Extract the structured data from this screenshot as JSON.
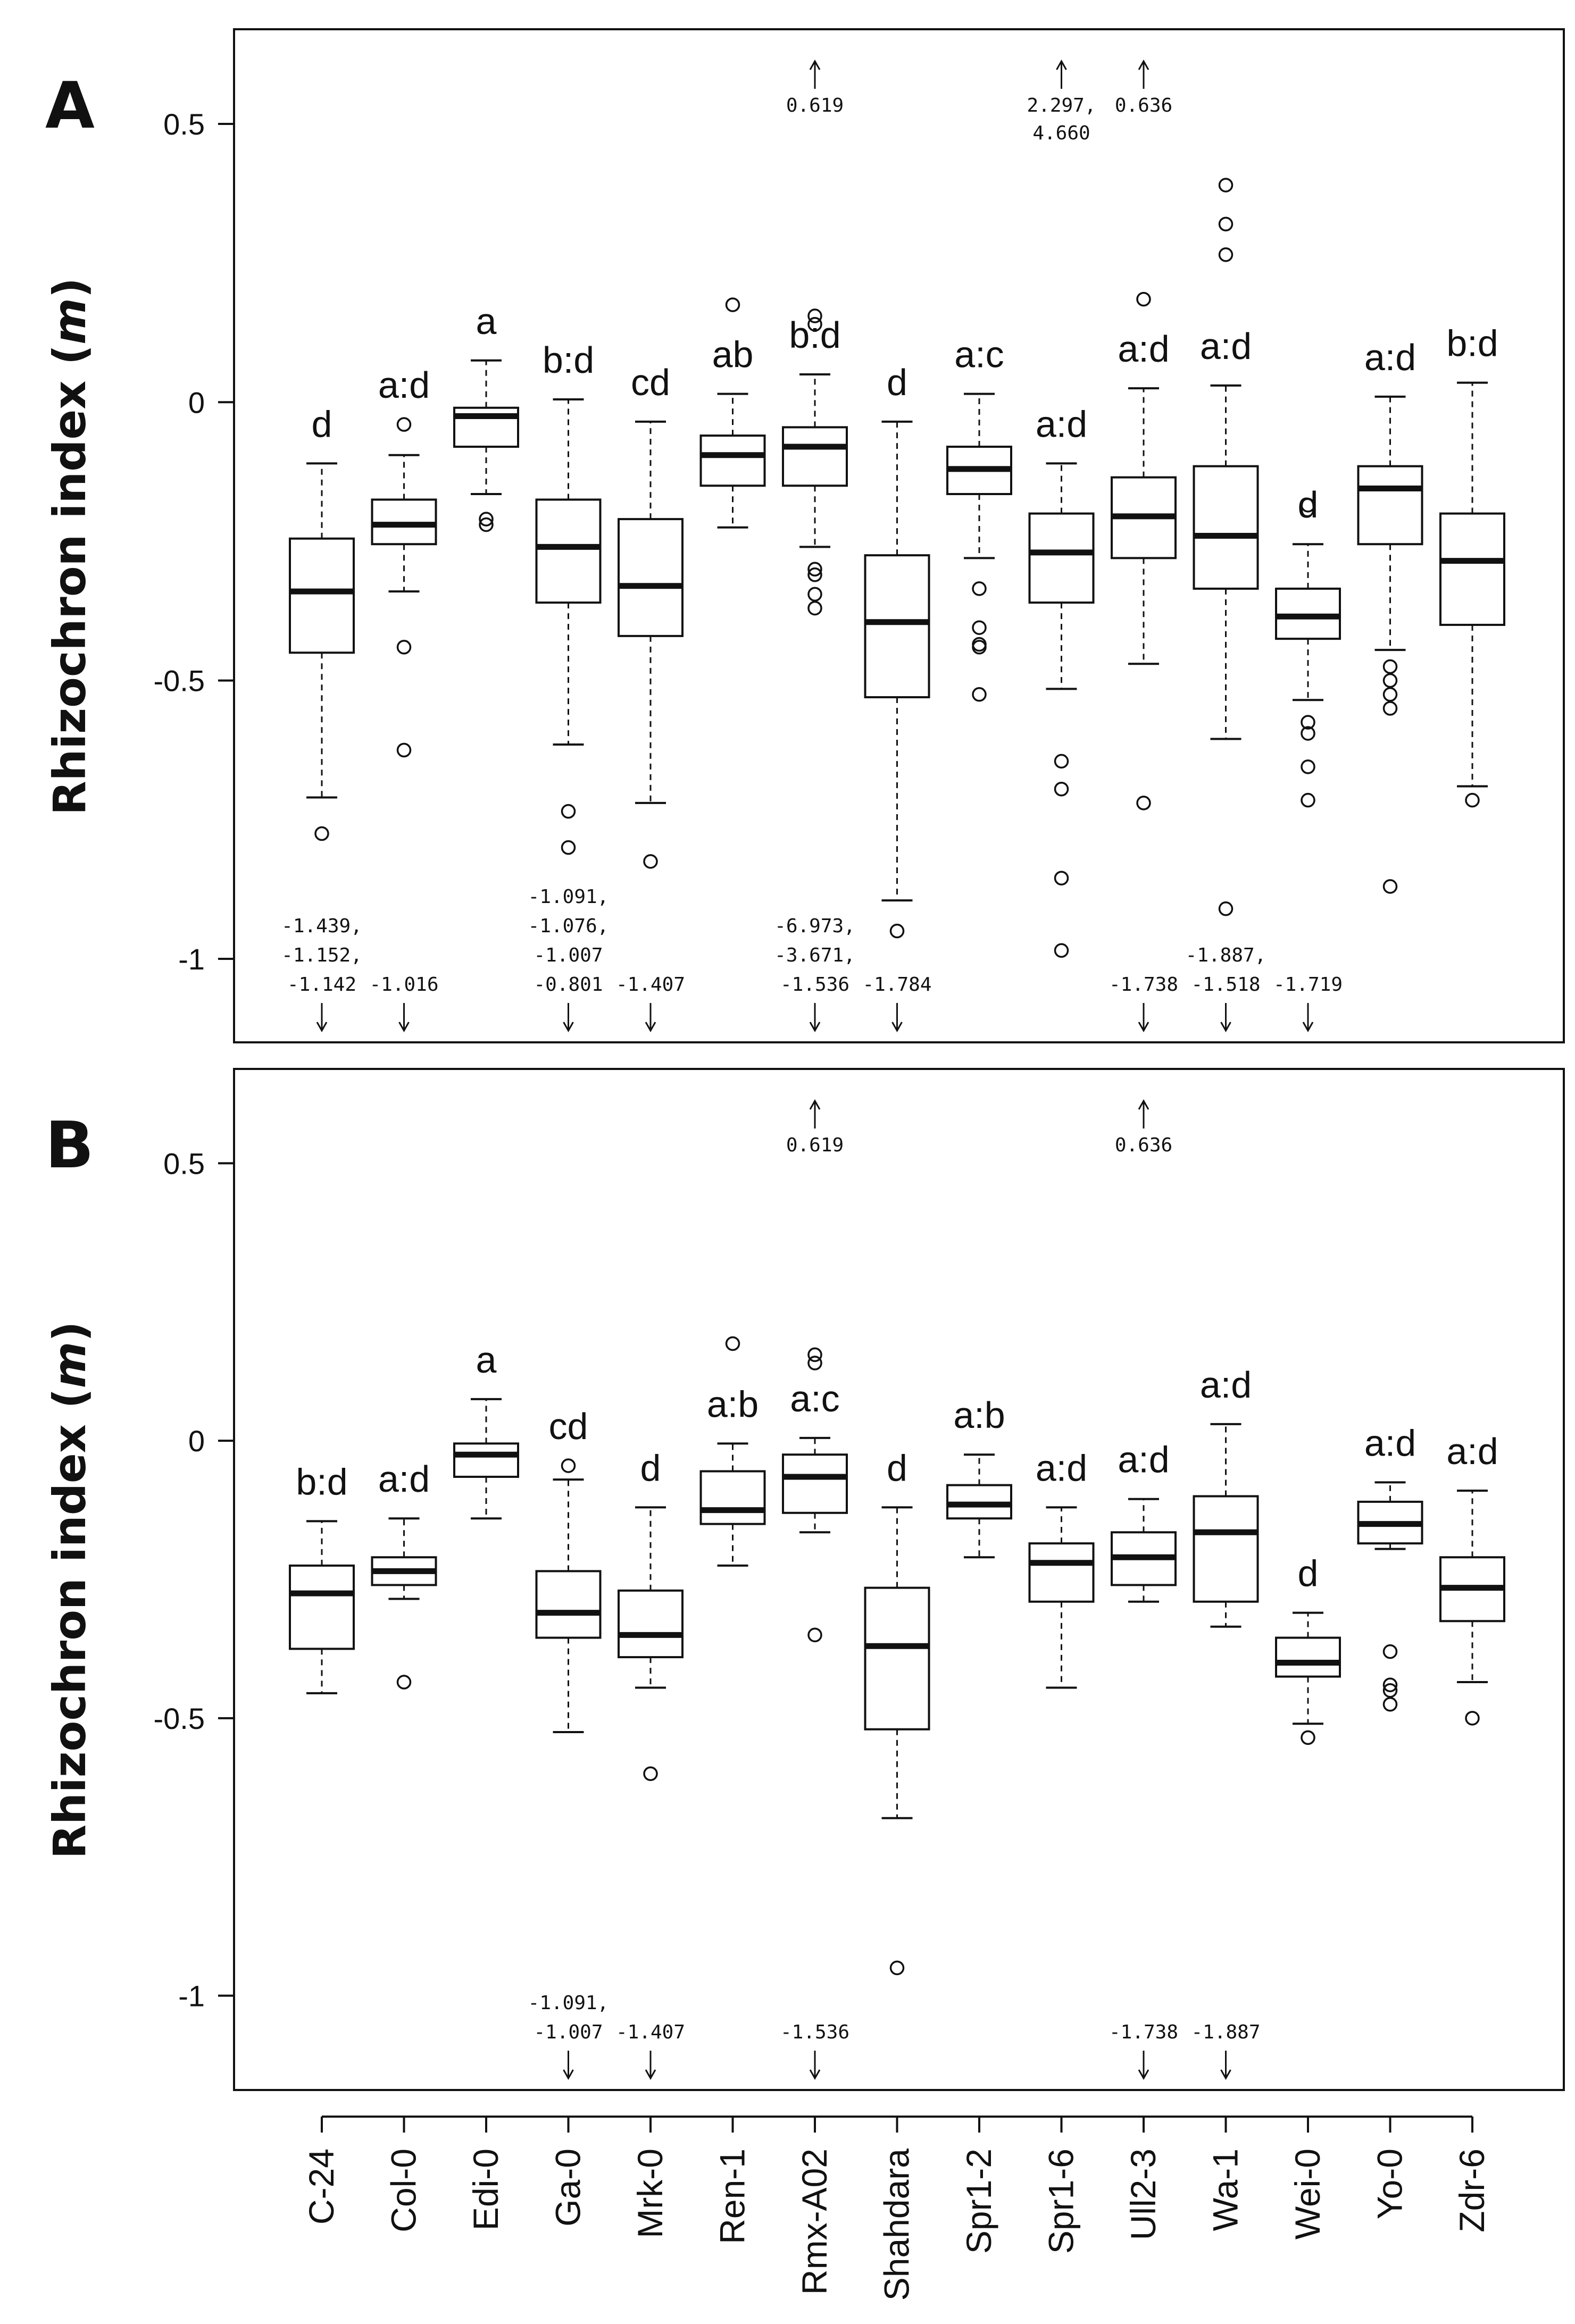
{
  "chart_data": {
    "type": "box",
    "ylabel": "Rhizochron index",
    "ylabel_var": "m",
    "categories": [
      "C-24",
      "Col-0",
      "Edi-0",
      "Ga-0",
      "Mrk-0",
      "Ren-1",
      "Rmx-A02",
      "Shahdara",
      "Spr1-2",
      "Spr1-6",
      "Ull2-3",
      "Wa-1",
      "Wei-0",
      "Yo-0",
      "Zdr-6"
    ],
    "panels": [
      {
        "letter": "A",
        "ylim": [
          -1.15,
          0.67
        ],
        "yticks": [
          0.5,
          0,
          -0.5,
          -1
        ],
        "ytick_labels": [
          "0.5",
          "0",
          "-0.5",
          "-1"
        ],
        "groups": [
          "d",
          "a:d",
          "a",
          "b:d",
          "cd",
          "ab",
          "b:d",
          "d",
          "a:c",
          "a:d",
          "a:d",
          "a:d",
          "d",
          "a:d",
          "b:d"
        ],
        "boxes": [
          {
            "wlo": -0.71,
            "q1": -0.45,
            "med": -0.34,
            "q3": -0.245,
            "whi": -0.11,
            "out": [
              -0.775
            ]
          },
          {
            "wlo": -0.34,
            "q1": -0.255,
            "med": -0.22,
            "q3": -0.175,
            "whi": -0.095,
            "out": [
              -0.04,
              -0.44,
              -0.625
            ]
          },
          {
            "wlo": -0.165,
            "q1": -0.08,
            "med": -0.025,
            "q3": -0.01,
            "whi": 0.075,
            "out": [
              -0.21,
              -0.22
            ]
          },
          {
            "wlo": -0.615,
            "q1": -0.36,
            "med": -0.26,
            "q3": -0.175,
            "whi": 0.005,
            "out": [
              -0.735,
              -0.8
            ]
          },
          {
            "wlo": -0.72,
            "q1": -0.42,
            "med": -0.33,
            "q3": -0.21,
            "whi": -0.035,
            "out": [
              -0.825
            ]
          },
          {
            "wlo": -0.225,
            "q1": -0.15,
            "med": -0.095,
            "q3": -0.06,
            "whi": 0.015,
            "out": [
              0.175
            ]
          },
          {
            "wlo": -0.26,
            "q1": -0.15,
            "med": -0.08,
            "q3": -0.045,
            "whi": 0.05,
            "out": [
              0.14,
              0.155,
              -0.3,
              -0.31,
              -0.345,
              -0.37
            ]
          },
          {
            "wlo": -0.895,
            "q1": -0.53,
            "med": -0.395,
            "q3": -0.275,
            "whi": -0.035,
            "out": [
              -0.95
            ]
          },
          {
            "wlo": -0.28,
            "q1": -0.165,
            "med": -0.12,
            "q3": -0.08,
            "whi": 0.015,
            "out": [
              -0.335,
              -0.405,
              -0.435,
              -0.44,
              -0.525
            ]
          },
          {
            "wlo": -0.515,
            "q1": -0.36,
            "med": -0.27,
            "q3": -0.2,
            "whi": -0.11,
            "out": [
              -0.645,
              -0.695,
              -0.855,
              -0.985
            ]
          },
          {
            "wlo": -0.47,
            "q1": -0.28,
            "med": -0.205,
            "q3": -0.135,
            "whi": 0.025,
            "out": [
              0.185,
              -0.72
            ]
          },
          {
            "wlo": -0.605,
            "q1": -0.335,
            "med": -0.24,
            "q3": -0.115,
            "whi": 0.03,
            "out": [
              0.39,
              0.32,
              0.265,
              -0.91
            ]
          },
          {
            "wlo": -0.535,
            "q1": -0.425,
            "med": -0.385,
            "q3": -0.335,
            "whi": -0.255,
            "out": [
              -0.185,
              -0.575,
              -0.595,
              -0.655,
              -0.715
            ]
          },
          {
            "wlo": -0.445,
            "q1": -0.255,
            "med": -0.155,
            "q3": -0.115,
            "whi": 0.01,
            "out": [
              -0.475,
              -0.5,
              -0.525,
              -0.55,
              -0.87
            ]
          },
          {
            "wlo": -0.69,
            "q1": -0.4,
            "med": -0.285,
            "q3": -0.2,
            "whi": 0.035,
            "out": [
              -0.715
            ]
          }
        ],
        "offscale_high": [
          {
            "cat": 6,
            "lines": [
              "0.619"
            ]
          },
          {
            "cat": 9,
            "lines": [
              "2.297,",
              "4.660"
            ]
          },
          {
            "cat": 10,
            "lines": [
              "0.636"
            ]
          }
        ],
        "offscale_low": [
          {
            "cat": 0,
            "lines": [
              "-1.439,",
              "-1.152,",
              "-1.142"
            ]
          },
          {
            "cat": 1,
            "lines": [
              "-1.016"
            ]
          },
          {
            "cat": 3,
            "lines": [
              "-1.091,",
              "-1.076,",
              "-1.007",
              "-0.801"
            ]
          },
          {
            "cat": 4,
            "lines": [
              "-1.407"
            ]
          },
          {
            "cat": 6,
            "lines": [
              "-6.973,",
              "-3.671,",
              "-1.536"
            ]
          },
          {
            "cat": 7,
            "lines": [
              "-1.784"
            ]
          },
          {
            "cat": 10,
            "lines": [
              "-1.738"
            ]
          },
          {
            "cat": 11,
            "lines": [
              "-1.887,",
              "-1.518"
            ]
          },
          {
            "cat": 12,
            "lines": [
              "-1.719"
            ]
          }
        ]
      },
      {
        "letter": "B",
        "ylim": [
          -1.17,
          0.67
        ],
        "yticks": [
          0.5,
          0,
          -0.5,
          -1
        ],
        "ytick_labels": [
          "0.5",
          "0",
          "-0.5",
          "-1"
        ],
        "groups": [
          "b:d",
          "a:d",
          "a",
          "cd",
          "d",
          "a:b",
          "a:c",
          "d",
          "a:b",
          "a:d",
          "a:d",
          "a:d",
          "d",
          "a:d",
          "a:d"
        ],
        "boxes": [
          {
            "wlo": -0.455,
            "q1": -0.375,
            "med": -0.275,
            "q3": -0.225,
            "whi": -0.145,
            "out": []
          },
          {
            "wlo": -0.285,
            "q1": -0.26,
            "med": -0.235,
            "q3": -0.21,
            "whi": -0.14,
            "out": [
              -0.435
            ]
          },
          {
            "wlo": -0.14,
            "q1": -0.065,
            "med": -0.025,
            "q3": -0.005,
            "whi": 0.075,
            "out": []
          },
          {
            "wlo": -0.525,
            "q1": -0.355,
            "med": -0.31,
            "q3": -0.235,
            "whi": -0.07,
            "out": [
              -0.045
            ]
          },
          {
            "wlo": -0.445,
            "q1": -0.39,
            "med": -0.35,
            "q3": -0.27,
            "whi": -0.12,
            "out": [
              -0.6
            ]
          },
          {
            "wlo": -0.225,
            "q1": -0.15,
            "med": -0.125,
            "q3": -0.055,
            "whi": -0.005,
            "out": [
              0.175
            ]
          },
          {
            "wlo": -0.165,
            "q1": -0.13,
            "med": -0.065,
            "q3": -0.025,
            "whi": 0.005,
            "out": [
              0.14,
              0.155,
              -0.35
            ]
          },
          {
            "wlo": -0.68,
            "q1": -0.52,
            "med": -0.37,
            "q3": -0.265,
            "whi": -0.12,
            "out": [
              -0.95
            ]
          },
          {
            "wlo": -0.21,
            "q1": -0.14,
            "med": -0.115,
            "q3": -0.08,
            "whi": -0.025,
            "out": []
          },
          {
            "wlo": -0.445,
            "q1": -0.29,
            "med": -0.22,
            "q3": -0.185,
            "whi": -0.12,
            "out": []
          },
          {
            "wlo": -0.29,
            "q1": -0.26,
            "med": -0.21,
            "q3": -0.165,
            "whi": -0.105,
            "out": []
          },
          {
            "wlo": -0.335,
            "q1": -0.29,
            "med": -0.165,
            "q3": -0.1,
            "whi": 0.03,
            "out": []
          },
          {
            "wlo": -0.51,
            "q1": -0.425,
            "med": -0.4,
            "q3": -0.355,
            "whi": -0.31,
            "out": [
              -0.535
            ]
          },
          {
            "wlo": -0.195,
            "q1": -0.185,
            "med": -0.15,
            "q3": -0.11,
            "whi": -0.075,
            "out": [
              -0.38,
              -0.44,
              -0.45,
              -0.475
            ]
          },
          {
            "wlo": -0.435,
            "q1": -0.325,
            "med": -0.265,
            "q3": -0.21,
            "whi": -0.09,
            "out": [
              -0.5
            ]
          }
        ],
        "offscale_high": [
          {
            "cat": 6,
            "lines": [
              "0.619"
            ]
          },
          {
            "cat": 10,
            "lines": [
              "0.636"
            ]
          }
        ],
        "offscale_low": [
          {
            "cat": 3,
            "lines": [
              "-1.091,",
              "-1.007"
            ]
          },
          {
            "cat": 4,
            "lines": [
              "-1.407"
            ]
          },
          {
            "cat": 6,
            "lines": [
              "-1.536"
            ]
          },
          {
            "cat": 10,
            "lines": [
              "-1.738"
            ]
          },
          {
            "cat": 11,
            "lines": [
              "-1.887"
            ]
          }
        ]
      }
    ]
  }
}
